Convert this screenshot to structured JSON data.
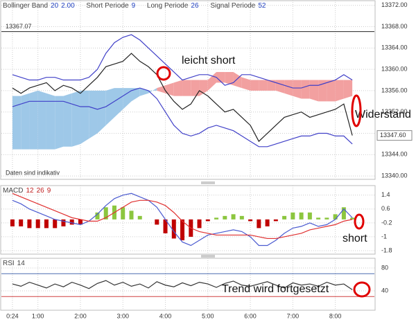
{
  "chart_data": [
    {
      "type": "line",
      "indicators": [
        {
          "name": "Bollinger Band",
          "params": [
            "20",
            "2.00"
          ]
        },
        {
          "name": "Short Periode",
          "params": [
            "9"
          ]
        },
        {
          "name": "Long Periode",
          "params": [
            "26"
          ]
        },
        {
          "name": "Signal Periode",
          "params": [
            "52"
          ]
        }
      ],
      "note": "Daten sind indikativ",
      "annotations": [
        "leicht short",
        "Widerstand"
      ],
      "reference": {
        "value": 13367.07,
        "label": "13367.07"
      },
      "last_price": {
        "value": 13347.6,
        "label": "13347.60"
      },
      "x": [
        0.4,
        0.6,
        0.8,
        1.0,
        1.2,
        1.4,
        1.6,
        1.8,
        2.0,
        2.2,
        2.4,
        2.6,
        2.8,
        3.0,
        3.2,
        3.4,
        3.6,
        3.8,
        4.0,
        4.2,
        4.4,
        4.6,
        4.8,
        5.0,
        5.2,
        5.4,
        5.6,
        5.8,
        6.0,
        6.2,
        6.4,
        6.6,
        6.8,
        7.0,
        7.2,
        7.4,
        7.6,
        7.8,
        8.0,
        8.2,
        8.4
      ],
      "xlim": [
        0.14,
        8.92
      ],
      "ylim": [
        13339.5,
        13373
      ],
      "yticks": [
        {
          "value": 13340,
          "label": "13340.00"
        },
        {
          "value": 13344,
          "label": "13344.00"
        },
        {
          "value": 13348,
          "label": "13348.00"
        },
        {
          "value": 13352,
          "label": "13352.00"
        },
        {
          "value": 13356,
          "label": "13356.00"
        },
        {
          "value": 13360,
          "label": "13360.00"
        },
        {
          "value": 13364,
          "label": "13364.00"
        },
        {
          "value": 13368,
          "label": "13368.00"
        },
        {
          "value": 13372,
          "label": "13372.00"
        }
      ],
      "grid": true,
      "cloud": {
        "span_a": [
          13355,
          13355,
          13355.5,
          13356,
          13355.5,
          13355,
          13355,
          13355.5,
          13356,
          13356,
          13356,
          13356,
          13356.5,
          13356.5,
          13356.5,
          13356.5,
          13356,
          13356,
          13355.5,
          13355,
          13355,
          13355,
          13355,
          13356,
          13357.5,
          13357.5,
          13357,
          13356.5,
          13356,
          13356,
          13356,
          13356,
          13355.5,
          13355,
          13354.5,
          13354.5,
          13354,
          13354,
          13354,
          13354.5,
          13355
        ],
        "span_b": [
          13345,
          13345,
          13345,
          13345,
          13345,
          13345,
          13345.5,
          13345.5,
          13346,
          13347,
          13348,
          13349.5,
          13351,
          13352.5,
          13354,
          13355,
          13355.5,
          13356.5,
          13357,
          13357.5,
          13358,
          13358,
          13358,
          13358,
          13359.5,
          13359.5,
          13359.5,
          13358.5,
          13358,
          13358,
          13358,
          13358,
          13358,
          13358,
          13358,
          13358,
          13358,
          13358,
          13358,
          13358,
          13358
        ],
        "up_color": "#9ec8e8",
        "down_color": "#f2a0a0"
      },
      "series": [
        {
          "color": "#4040c8",
          "values": [
            13359,
            13358.5,
            13358,
            13358,
            13358.5,
            13358.5,
            13358,
            13358,
            13358,
            13358.5,
            13360,
            13363,
            13365,
            13366,
            13366.5,
            13365.5,
            13364,
            13362.5,
            13361,
            13359.5,
            13358,
            13358.5,
            13359,
            13359,
            13358.5,
            13357,
            13357.5,
            13359,
            13359,
            13358.5,
            13358,
            13357.5,
            13357,
            13356.5,
            13356.5,
            13357,
            13357,
            13357.5,
            13358,
            13359,
            13358
          ]
        },
        {
          "color": "#4040c8",
          "values": [
            13353,
            13353.5,
            13354,
            13354,
            13354,
            13354,
            13354,
            13353.5,
            13353,
            13353,
            13352.5,
            13353,
            13354,
            13355,
            13356,
            13356.5,
            13356,
            13354.5,
            13352,
            13349.5,
            13348,
            13347.5,
            13348,
            13349,
            13349.5,
            13349,
            13348.5,
            13347.5,
            13346.5,
            13345.5,
            13345.5,
            13346,
            13346.5,
            13347,
            13347.5,
            13347.5,
            13348,
            13348,
            13347.5,
            13347.5,
            13346
          ]
        },
        {
          "color": "#222222",
          "values": [
            13356.5,
            13355.5,
            13356.5,
            13357,
            13357.5,
            13356,
            13357,
            13356.5,
            13355.5,
            13357,
            13358.5,
            13360.5,
            13361,
            13361.5,
            13363,
            13361.5,
            13360.5,
            13359,
            13356,
            13354,
            13352.5,
            13353.5,
            13356,
            13355,
            13353.5,
            13352,
            13352.5,
            13351,
            13349.5,
            13346.5,
            13348,
            13349.5,
            13351,
            13351.5,
            13352,
            13351,
            13351.5,
            13352,
            13352.5,
            13353.5,
            13347.6
          ]
        }
      ]
    },
    {
      "type": "bar",
      "indicators": [
        {
          "name": "MACD",
          "params": [
            "12",
            "26",
            "9"
          ]
        }
      ],
      "annotations": [
        "short"
      ],
      "x": [
        0.4,
        0.6,
        0.8,
        1.0,
        1.2,
        1.4,
        1.6,
        1.8,
        2.0,
        2.2,
        2.4,
        2.6,
        2.8,
        3.0,
        3.2,
        3.4,
        3.6,
        3.8,
        4.0,
        4.2,
        4.4,
        4.6,
        4.8,
        5.0,
        5.2,
        5.4,
        5.6,
        5.8,
        6.0,
        6.2,
        6.4,
        6.6,
        6.8,
        7.0,
        7.2,
        7.4,
        7.6,
        7.8,
        8.0,
        8.2,
        8.4
      ],
      "xlim": [
        0.14,
        8.92
      ],
      "ylim": [
        -2.0,
        1.95
      ],
      "yticks": [
        1.4,
        0.6,
        -0.2,
        -1,
        -1.8
      ],
      "grid": true,
      "values": [
        -0.4,
        -0.4,
        -0.5,
        -0.5,
        -0.5,
        -0.5,
        -0.4,
        -0.3,
        -0.3,
        0,
        0.4,
        0.7,
        0.8,
        0.7,
        0.5,
        0.2,
        0,
        -0.3,
        -0.8,
        -1.1,
        -1.2,
        -1.0,
        -0.5,
        -0.1,
        0.1,
        0.2,
        0.3,
        0.2,
        -0.1,
        -0.5,
        -0.4,
        -0.1,
        0.2,
        0.4,
        0.4,
        0.4,
        0.1,
        0.1,
        0.3,
        0.7,
        0.1
      ],
      "bar_colors": [
        "#8cc63f",
        "#c00000"
      ],
      "series": [
        {
          "color": "#4a5ad0",
          "values": [
            1.1,
            0.9,
            0.6,
            0.4,
            0.2,
            0.0,
            -0.1,
            -0.2,
            -0.3,
            -0.1,
            0.3,
            0.8,
            1.2,
            1.4,
            1.5,
            1.3,
            1.1,
            0.7,
            0.0,
            -0.7,
            -1.3,
            -1.5,
            -1.2,
            -0.9,
            -0.8,
            -0.7,
            -0.6,
            -0.7,
            -1.0,
            -1.5,
            -1.5,
            -1.2,
            -0.8,
            -0.5,
            -0.4,
            -0.2,
            -0.4,
            -0.3,
            0.0,
            0.6,
            0.1
          ]
        },
        {
          "color": "#e03030",
          "values": [
            1.5,
            1.3,
            1.1,
            0.9,
            0.7,
            0.5,
            0.3,
            0.1,
            0.0,
            -0.1,
            -0.1,
            0.1,
            0.4,
            0.7,
            1.0,
            1.1,
            1.1,
            1.0,
            0.8,
            0.4,
            -0.1,
            -0.5,
            -0.7,
            -0.8,
            -0.9,
            -0.9,
            -0.9,
            -0.9,
            -0.9,
            -1.0,
            -1.1,
            -1.1,
            -1.0,
            -0.9,
            -0.8,
            -0.6,
            -0.5,
            -0.4,
            -0.3,
            -0.1,
            0.0
          ]
        }
      ]
    },
    {
      "type": "line",
      "indicators": [
        {
          "name": "RSI",
          "params": [
            "14"
          ]
        }
      ],
      "annotations": [
        "Trend wird fortgesetzt"
      ],
      "x": [
        0.4,
        0.6,
        0.8,
        1.0,
        1.2,
        1.4,
        1.6,
        1.8,
        2.0,
        2.2,
        2.4,
        2.6,
        2.8,
        3.0,
        3.2,
        3.4,
        3.6,
        3.8,
        4.0,
        4.2,
        4.4,
        4.6,
        4.8,
        5.0,
        5.2,
        5.4,
        5.6,
        5.8,
        6.0,
        6.2,
        6.4,
        6.6,
        6.8,
        7.0,
        7.2,
        7.4,
        7.6,
        7.8,
        8.0,
        8.2,
        8.4
      ],
      "xlim": [
        0.14,
        8.92
      ],
      "xticks": [
        {
          "value": 0.4,
          "label": "0:24"
        },
        {
          "value": 1,
          "label": "1:00"
        },
        {
          "value": 2,
          "label": "2:00"
        },
        {
          "value": 3,
          "label": "3:00"
        },
        {
          "value": 4,
          "label": "4:00"
        },
        {
          "value": 5,
          "label": "5:00"
        },
        {
          "value": 6,
          "label": "6:00"
        },
        {
          "value": 7,
          "label": "7:00"
        },
        {
          "value": 8,
          "label": "8:00"
        }
      ],
      "ylim": [
        6,
        97
      ],
      "yticks": [
        80,
        40
      ],
      "grid": true,
      "hlines": [
        {
          "value": 70,
          "color": "#4a6ab0"
        },
        {
          "value": 30,
          "color": "#d04040"
        }
      ],
      "series": [
        {
          "color": "#333333",
          "values": [
            52,
            48,
            55,
            50,
            45,
            52,
            47,
            55,
            50,
            44,
            53,
            58,
            50,
            55,
            48,
            52,
            45,
            56,
            50,
            47,
            54,
            49,
            55,
            52,
            46,
            53,
            57,
            50,
            48,
            52,
            56,
            50,
            45,
            54,
            50,
            52,
            48,
            55,
            50,
            52,
            42
          ]
        }
      ]
    }
  ]
}
